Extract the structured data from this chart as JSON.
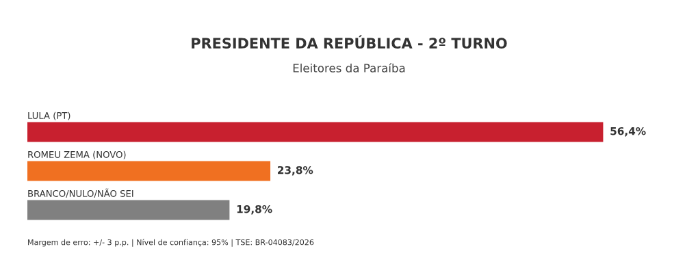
{
  "chart_data": {
    "type": "bar",
    "orientation": "horizontal",
    "title": "PRESIDENTE DA REPÚBLICA - 2º TURNO",
    "subtitle": "Eleitores da Paraíba",
    "categories": [
      "LULA (PT)",
      "ROMEU ZEMA (NOVO)",
      "BRANCO/NULO/NÃO SEI"
    ],
    "values": [
      56.4,
      23.8,
      19.8
    ],
    "colors": [
      "#c8202f",
      "#f07021",
      "#808080"
    ],
    "value_labels": [
      "56,4%",
      "23,8%",
      "19,8%"
    ],
    "annotations": [
      "Margem de erro: +/- 3 p.p. | Nível de confiança: 95% | TSE: BR-04083/2026"
    ]
  }
}
